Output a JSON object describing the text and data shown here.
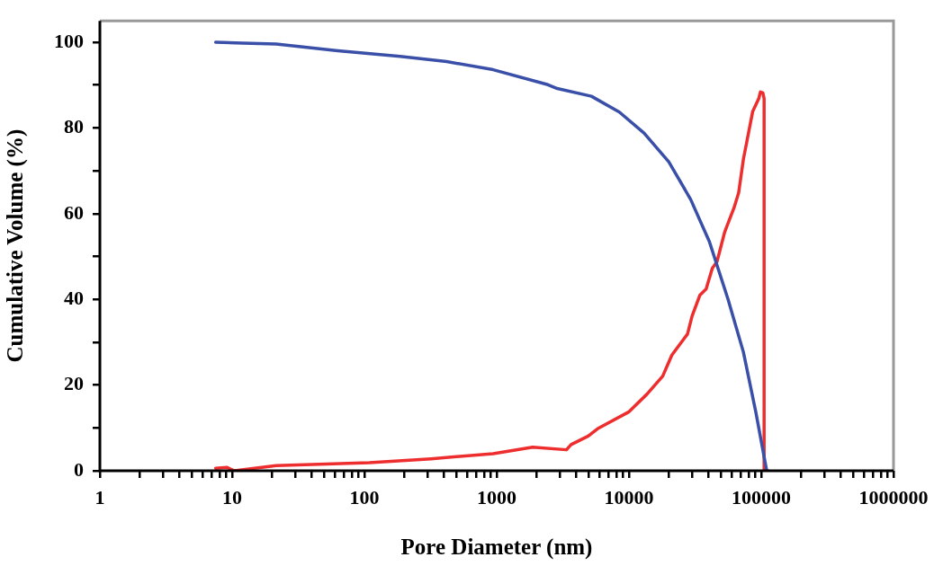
{
  "chart_data": {
    "type": "line",
    "xlabel": "Pore Diameter (nm)",
    "ylabel": "Cumulative Volume (%)",
    "log": "x",
    "grid": false,
    "legend": false,
    "marker": "none",
    "line_style": "solid",
    "xlim": [
      1,
      1000000
    ],
    "ylim": [
      0,
      105
    ],
    "xticks": [
      1,
      {
        "value": 2,
        "label": null
      },
      {
        "value": 3,
        "label": null
      },
      {
        "value": 4,
        "label": null
      },
      {
        "value": 5,
        "label": null
      },
      {
        "value": 6,
        "label": null
      },
      {
        "value": 7,
        "label": null
      },
      {
        "value": 8,
        "label": null
      },
      {
        "value": 9,
        "label": null
      },
      10,
      {
        "value": 20,
        "label": null
      },
      {
        "value": 30,
        "label": null
      },
      {
        "value": 40,
        "label": null
      },
      {
        "value": 50,
        "label": null
      },
      {
        "value": 60,
        "label": null
      },
      {
        "value": 70,
        "label": null
      },
      {
        "value": 80,
        "label": null
      },
      {
        "value": 90,
        "label": null
      },
      100,
      {
        "value": 200,
        "label": null
      },
      {
        "value": 300,
        "label": null
      },
      {
        "value": 400,
        "label": null
      },
      {
        "value": 500,
        "label": null
      },
      {
        "value": 600,
        "label": null
      },
      {
        "value": 700,
        "label": null
      },
      {
        "value": 800,
        "label": null
      },
      {
        "value": 900,
        "label": null
      },
      1000,
      {
        "value": 2000,
        "label": null
      },
      {
        "value": 3000,
        "label": null
      },
      {
        "value": 4000,
        "label": null
      },
      {
        "value": 5000,
        "label": null
      },
      {
        "value": 6000,
        "label": null
      },
      {
        "value": 7000,
        "label": null
      },
      {
        "value": 8000,
        "label": null
      },
      {
        "value": 9000,
        "label": null
      },
      10000,
      {
        "value": 20000,
        "label": null
      },
      {
        "value": 30000,
        "label": null
      },
      {
        "value": 40000,
        "label": null
      },
      {
        "value": 50000,
        "label": null
      },
      {
        "value": 60000,
        "label": null
      },
      {
        "value": 70000,
        "label": null
      },
      {
        "value": 80000,
        "label": null
      },
      {
        "value": 90000,
        "label": null
      },
      100000,
      {
        "value": 200000,
        "label": null
      },
      {
        "value": 300000,
        "label": null
      },
      {
        "value": 400000,
        "label": null
      },
      {
        "value": 500000,
        "label": null
      },
      {
        "value": 600000,
        "label": null
      },
      {
        "value": 700000,
        "label": null
      },
      {
        "value": 800000,
        "label": null
      },
      {
        "value": 900000,
        "label": null
      },
      1000000
    ],
    "yticks": [
      0,
      {
        "value": 10,
        "label": null
      },
      20,
      {
        "value": 30,
        "label": null
      },
      40,
      {
        "value": 50,
        "label": null
      },
      60,
      {
        "value": 70,
        "label": null
      },
      80,
      {
        "value": 90,
        "label": null
      },
      100
    ],
    "series": [
      {
        "color": "#3a50a8",
        "x": [
          7.5,
          12,
          21.5,
          63,
          186,
          418,
          940,
          2440,
          2870,
          5200,
          8460,
          13000,
          20000,
          29300,
          40500,
          56000,
          73300,
          91000,
          110000
        ],
        "values": [
          100,
          99.8,
          99.6,
          98.0,
          96.7,
          95.5,
          93.6,
          90.1,
          89.2,
          87.4,
          83.7,
          78.8,
          72.1,
          63.3,
          53.5,
          40.1,
          27.7,
          13.7,
          0
        ]
      },
      {
        "color": "#ee2e2e",
        "x": [
          7.5,
          9.1,
          10.4,
          21.5,
          109,
          319,
          940,
          1870,
          3370,
          3650,
          4920,
          5780,
          9930,
          13700,
          18000,
          21100,
          27700,
          30000,
          34400,
          38300,
          42700,
          46300,
          52900,
          62300,
          67500,
          73300,
          86100,
          95900,
          98600,
          102900,
          105100,
          105100,
          112700
        ],
        "values": [
          0.6,
          0.8,
          0,
          1.2,
          1.9,
          2.8,
          4.0,
          5.5,
          4.9,
          6.1,
          8.1,
          9.8,
          13.7,
          17.9,
          22.1,
          27.0,
          31.9,
          36.1,
          41.0,
          42.4,
          47.3,
          48.8,
          55.7,
          61.4,
          64.9,
          72.7,
          83.8,
          86.9,
          88.4,
          88.2,
          86.9,
          0,
          0
        ]
      }
    ]
  }
}
